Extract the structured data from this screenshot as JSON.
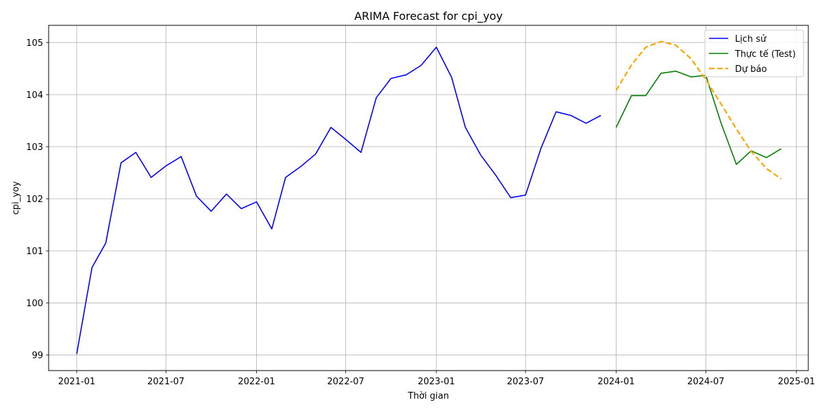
{
  "chart_data": {
    "type": "line",
    "title": "ARIMA Forecast for cpi_yoy",
    "xlabel": "Thời gian",
    "ylabel": "cpi_yoy",
    "xlim": [
      "2020-11-05",
      "2025-01-25"
    ],
    "ylim": [
      98.7,
      105.33
    ],
    "grid": true,
    "legend_position": "top-right",
    "x_ticks": [
      {
        "date": "2021-01-01",
        "label": "2021-01"
      },
      {
        "date": "2021-07-01",
        "label": "2021-07"
      },
      {
        "date": "2022-01-01",
        "label": "2022-01"
      },
      {
        "date": "2022-07-01",
        "label": "2022-07"
      },
      {
        "date": "2023-01-01",
        "label": "2023-01"
      },
      {
        "date": "2023-07-01",
        "label": "2023-07"
      },
      {
        "date": "2024-01-01",
        "label": "2024-01"
      },
      {
        "date": "2024-07-01",
        "label": "2024-07"
      },
      {
        "date": "2025-01-01",
        "label": "2025-01"
      }
    ],
    "y_ticks": [
      99,
      100,
      101,
      102,
      103,
      104,
      105
    ],
    "series": [
      {
        "name": "Lịch sử",
        "color": "#0000ff",
        "style": "solid",
        "x": [
          "2021-01-01",
          "2021-02-01",
          "2021-03-01",
          "2021-04-01",
          "2021-05-01",
          "2021-06-01",
          "2021-07-01",
          "2021-08-01",
          "2021-09-01",
          "2021-10-01",
          "2021-11-01",
          "2021-12-01",
          "2022-01-01",
          "2022-02-01",
          "2022-03-01",
          "2022-04-01",
          "2022-05-01",
          "2022-06-01",
          "2022-07-01",
          "2022-08-01",
          "2022-09-01",
          "2022-10-01",
          "2022-11-01",
          "2022-12-01",
          "2023-01-01",
          "2023-02-01",
          "2023-03-01",
          "2023-04-01",
          "2023-05-01",
          "2023-06-01",
          "2023-07-01",
          "2023-08-01",
          "2023-09-01",
          "2023-10-01",
          "2023-11-01",
          "2023-12-01"
        ],
        "y": [
          99.02,
          100.68,
          101.15,
          102.69,
          102.89,
          102.41,
          102.63,
          102.81,
          102.05,
          101.76,
          102.09,
          101.81,
          101.94,
          101.42,
          102.41,
          102.62,
          102.86,
          103.37,
          103.14,
          102.89,
          103.94,
          104.31,
          104.38,
          104.56,
          104.91,
          104.33,
          103.37,
          102.84,
          102.46,
          102.02,
          102.07,
          102.96,
          103.67,
          103.6,
          103.45,
          103.6
        ]
      },
      {
        "name": "Thực tế (Test)",
        "color": "#008000",
        "style": "solid",
        "x": [
          "2024-01-01",
          "2024-02-01",
          "2024-03-01",
          "2024-04-01",
          "2024-05-01",
          "2024-06-01",
          "2024-07-01",
          "2024-08-01",
          "2024-09-01",
          "2024-10-01",
          "2024-11-01",
          "2024-12-01"
        ],
        "y": [
          103.37,
          103.98,
          103.98,
          104.41,
          104.45,
          104.34,
          104.37,
          103.45,
          102.66,
          102.92,
          102.79,
          102.96
        ]
      },
      {
        "name": "Dự báo",
        "color": "#ffa500",
        "style": "dashed",
        "x": [
          "2024-01-01",
          "2024-02-01",
          "2024-03-01",
          "2024-04-01",
          "2024-05-01",
          "2024-06-01",
          "2024-07-01",
          "2024-08-01",
          "2024-09-01",
          "2024-10-01",
          "2024-11-01",
          "2024-12-01"
        ],
        "y": [
          104.08,
          104.57,
          104.91,
          105.02,
          104.95,
          104.69,
          104.29,
          103.82,
          103.34,
          102.91,
          102.58,
          102.38
        ]
      }
    ]
  }
}
